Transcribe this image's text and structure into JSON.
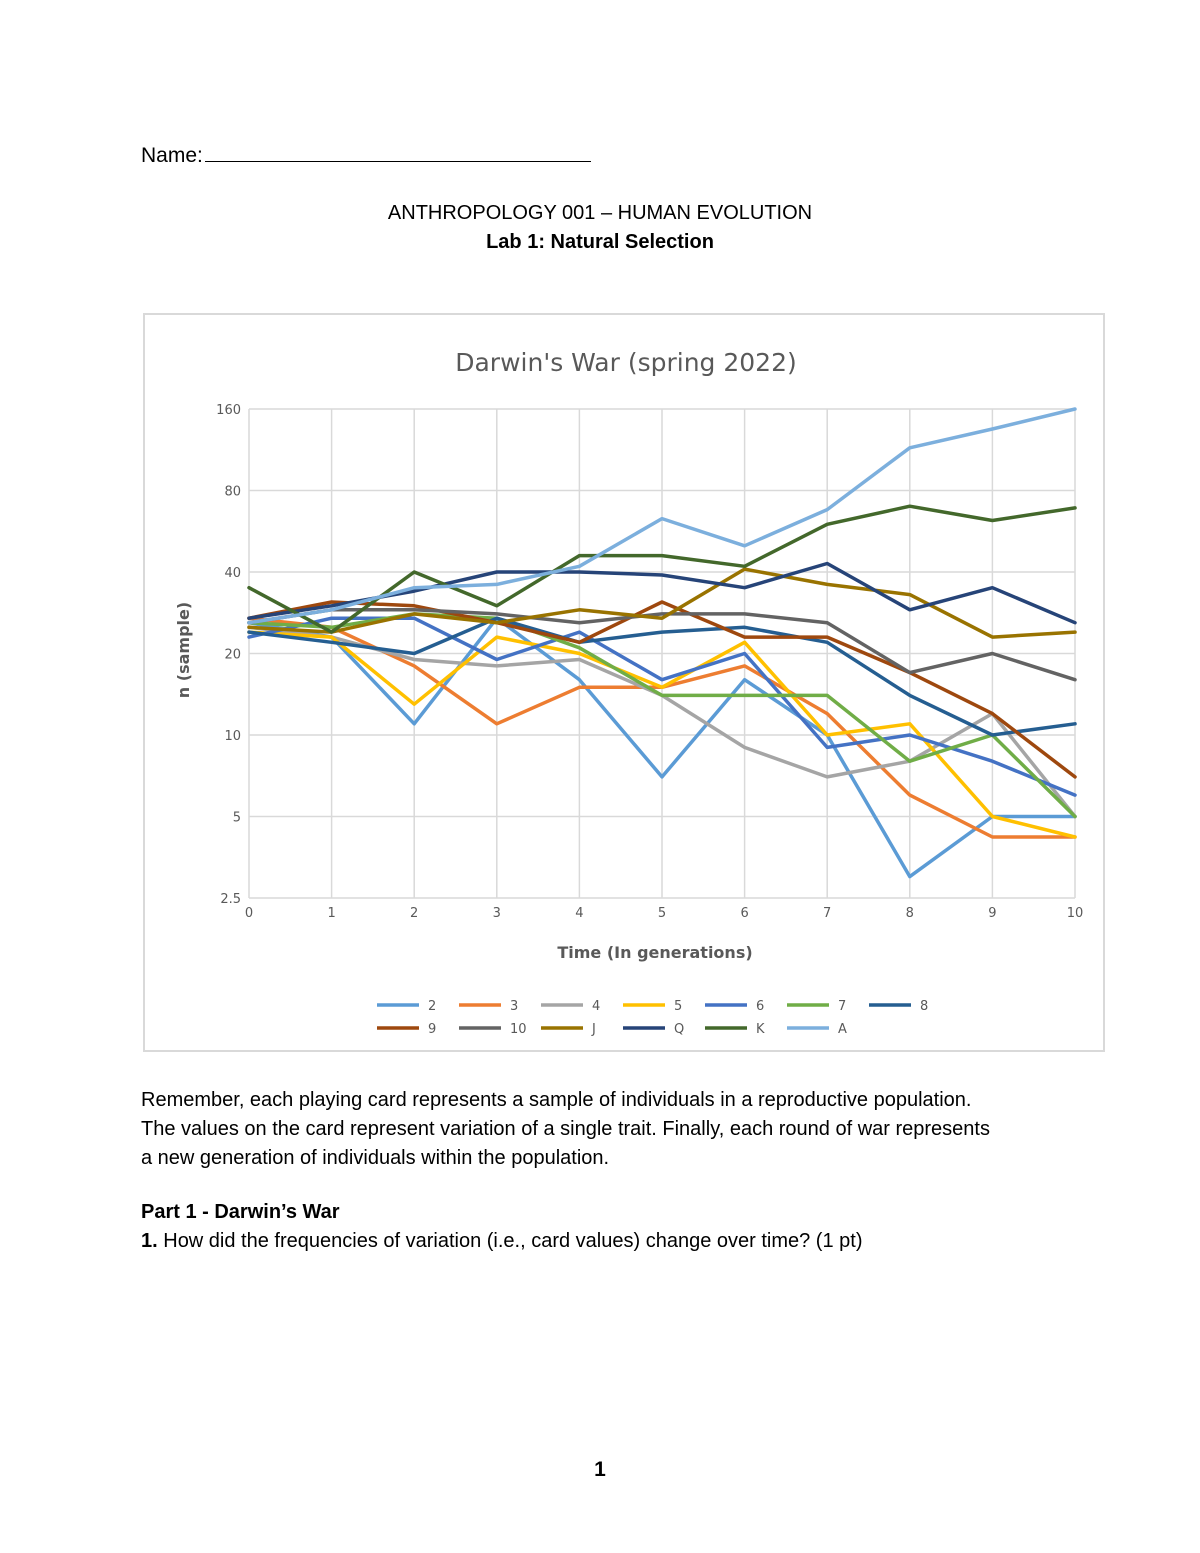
{
  "header": {
    "name_label": "Name:",
    "course_title": "ANTHROPOLOGY 001 – HUMAN EVOLUTION",
    "lab_title": "Lab 1: Natural Selection"
  },
  "chart_data": {
    "type": "line",
    "title": "Darwin's War (spring 2022)",
    "xlabel": "Time (In generations)",
    "ylabel": "n (sample)",
    "y_scale": "log2",
    "ylim": [
      2.5,
      160
    ],
    "xlim": [
      0,
      10
    ],
    "grid": true,
    "legend_position": "bottom",
    "x": [
      0,
      1,
      2,
      3,
      4,
      5,
      6,
      7,
      8,
      9,
      10
    ],
    "x_tick_labels": [
      "0",
      "1",
      "2",
      "3",
      "4",
      "5",
      "6",
      "7",
      "8",
      "9",
      "10"
    ],
    "y_ticks": [
      2.5,
      5,
      10,
      20,
      40,
      80,
      160
    ],
    "y_tick_labels": [
      "2.5",
      "5",
      "10",
      "20",
      "40",
      "80",
      "160"
    ],
    "series": [
      {
        "name": "2",
        "color": "#5b9bd5",
        "values": [
          26,
          23,
          11,
          27,
          16,
          7,
          16,
          10,
          3,
          5,
          5
        ]
      },
      {
        "name": "3",
        "color": "#ed7d31",
        "values": [
          27,
          25,
          18,
          11,
          15,
          15,
          18,
          12,
          6,
          4.2,
          4.2
        ]
      },
      {
        "name": "4",
        "color": "#a5a5a5",
        "values": [
          25,
          23,
          19,
          18,
          19,
          14,
          9,
          7,
          8,
          12,
          5
        ]
      },
      {
        "name": "5",
        "color": "#ffc000",
        "values": [
          24,
          23,
          13,
          23,
          20,
          15,
          22,
          10,
          11,
          5,
          4.2
        ]
      },
      {
        "name": "6",
        "color": "#4472c4",
        "values": [
          23,
          27,
          27,
          19,
          24,
          16,
          20,
          9,
          10,
          8,
          6
        ]
      },
      {
        "name": "7",
        "color": "#70ad47",
        "values": [
          26,
          25,
          28,
          27,
          21,
          14,
          14,
          14,
          8,
          10,
          5
        ]
      },
      {
        "name": "8",
        "color": "#255e91",
        "values": [
          24,
          22,
          20,
          27,
          22,
          24,
          25,
          22,
          14,
          10,
          11
        ]
      },
      {
        "name": "9",
        "color": "#9e480e",
        "values": [
          27,
          31,
          30,
          26,
          22,
          31,
          23,
          23,
          17,
          12,
          7
        ]
      },
      {
        "name": "10",
        "color": "#636363",
        "values": [
          26,
          29,
          29,
          28,
          26,
          28,
          28,
          26,
          17,
          20,
          16
        ]
      },
      {
        "name": "J",
        "color": "#997300",
        "values": [
          25,
          24,
          28,
          26,
          29,
          27,
          41,
          36,
          33,
          23,
          24
        ]
      },
      {
        "name": "Q",
        "color": "#264478",
        "values": [
          27,
          30,
          34,
          40,
          40,
          39,
          35,
          43,
          29,
          35,
          26
        ]
      },
      {
        "name": "K",
        "color": "#43682b",
        "values": [
          35,
          24,
          40,
          30,
          46,
          46,
          42,
          60,
          70,
          62,
          69
        ]
      },
      {
        "name": "A",
        "color": "#7cafdd",
        "values": [
          26,
          29,
          35,
          36,
          42,
          63,
          50,
          68,
          115,
          135,
          160
        ]
      }
    ]
  },
  "body": {
    "paragraph": [
      "Remember, each playing card represents a sample of individuals in a reproductive population.",
      "The values on the card represent variation of a single trait. Finally, each round of war represents",
      "a new generation of individuals within the population."
    ],
    "part_title": "Part 1 - Darwin’s War",
    "question_number": "1.",
    "question_text": " How did the frequencies of variation (i.e., card values) change over time? (1 pt)"
  },
  "footer": {
    "page_number": "1"
  }
}
